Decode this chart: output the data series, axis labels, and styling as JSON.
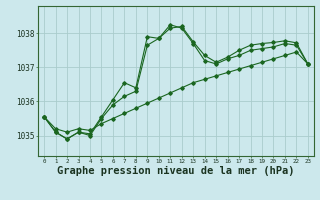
{
  "background_color": "#cce8ec",
  "grid_color": "#aacccc",
  "line_color": "#1a6620",
  "xlabel": "Graphe pression niveau de la mer (hPa)",
  "xlabel_fontsize": 7.5,
  "x_ticks": [
    0,
    1,
    2,
    3,
    4,
    5,
    6,
    7,
    8,
    9,
    10,
    11,
    12,
    13,
    14,
    15,
    16,
    17,
    18,
    19,
    20,
    21,
    22,
    23
  ],
  "ylim": [
    1034.4,
    1038.8
  ],
  "yticks": [
    1035,
    1036,
    1037,
    1038
  ],
  "curve_jagged1": [
    1035.55,
    1035.1,
    1034.9,
    1035.1,
    1035.05,
    1035.55,
    1036.05,
    1036.55,
    1036.4,
    1037.9,
    1037.85,
    1038.25,
    1038.15,
    1037.7,
    1037.2,
    1037.1,
    1037.25,
    1037.35,
    1037.5,
    1037.55,
    1037.6,
    1037.7,
    1037.65,
    1037.1
  ],
  "curve_jagged2": [
    1035.55,
    1035.1,
    1034.9,
    1035.1,
    1035.0,
    1035.5,
    1035.9,
    1036.15,
    1036.3,
    1037.65,
    1037.85,
    1038.15,
    1038.2,
    1037.75,
    1037.35,
    1037.15,
    1037.3,
    1037.5,
    1037.65,
    1037.7,
    1037.73,
    1037.78,
    1037.72,
    1037.1
  ],
  "curve_linear": [
    1035.55,
    1035.2,
    1035.1,
    1035.2,
    1035.15,
    1035.35,
    1035.5,
    1035.65,
    1035.8,
    1035.95,
    1036.1,
    1036.25,
    1036.4,
    1036.55,
    1036.65,
    1036.75,
    1036.85,
    1036.95,
    1037.05,
    1037.15,
    1037.25,
    1037.35,
    1037.45,
    1037.1
  ]
}
